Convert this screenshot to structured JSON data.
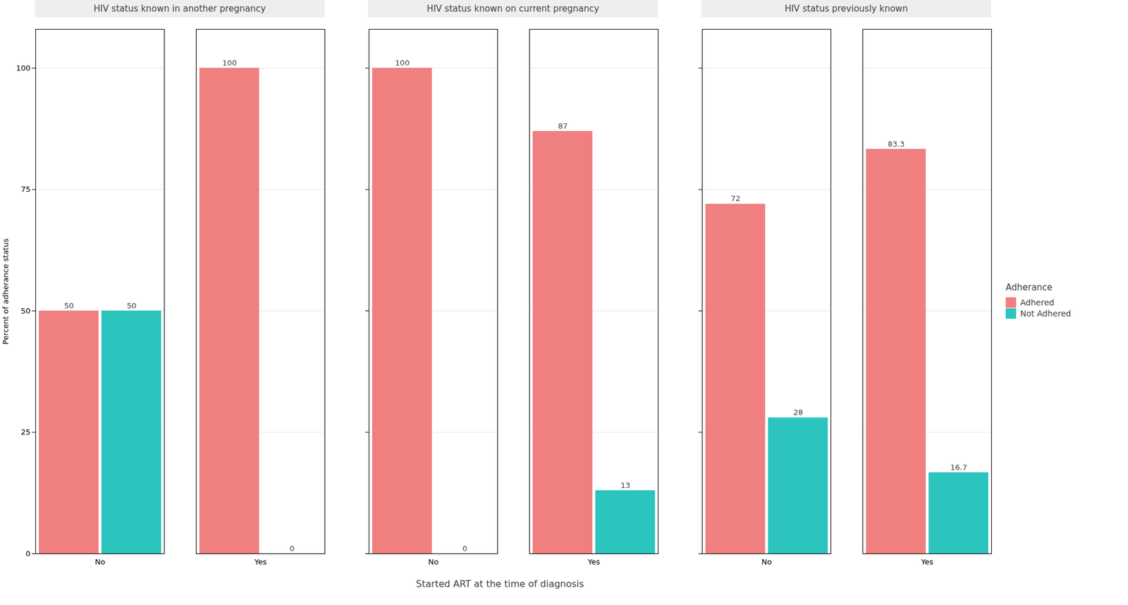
{
  "chart_data": [
    {
      "type": "bar",
      "title": "HIV status known in another pregnancy",
      "categories": [
        "No",
        "Yes"
      ],
      "series": [
        {
          "name": "Adhered",
          "color": "#F08080",
          "values": [
            50,
            100
          ]
        },
        {
          "name": "Not Adhered",
          "color": "#2CC4BE",
          "values": [
            50,
            0
          ]
        }
      ],
      "ylabel": "Percent of adherance status",
      "ylim": [
        0,
        108
      ],
      "yticks": [
        0,
        25,
        50,
        75,
        100
      ],
      "grid": true,
      "data_labels": true
    },
    {
      "type": "bar",
      "title": "HIV status known on current pregnancy",
      "categories": [
        "No",
        "Yes"
      ],
      "series": [
        {
          "name": "Adhered",
          "color": "#F08080",
          "values": [
            100,
            87
          ]
        },
        {
          "name": "Not Adhered",
          "color": "#2CC4BE",
          "values": [
            0,
            13
          ]
        }
      ],
      "xlabel": "Started ART at the time of diagnosis",
      "ylim": [
        0,
        108
      ],
      "yticks": [
        0,
        25,
        50,
        75,
        100
      ],
      "grid": true,
      "data_labels": true,
      "tick_labels": "x"
    },
    {
      "type": "bar",
      "title": "HIV status previously known",
      "categories": [
        "No",
        "Yes"
      ],
      "series": [
        {
          "name": "Adhered",
          "color": "#F08080",
          "values": [
            72,
            83.3
          ]
        },
        {
          "name": "Not Adhered",
          "color": "#2CC4BE",
          "values": [
            28,
            16.7
          ]
        }
      ],
      "ylim": [
        0,
        108
      ],
      "yticks": [
        0,
        25,
        50,
        75,
        100
      ],
      "grid": true,
      "data_labels": true,
      "tick_labels": "x",
      "legend": "right",
      "legend_title": "Adherance"
    }
  ]
}
